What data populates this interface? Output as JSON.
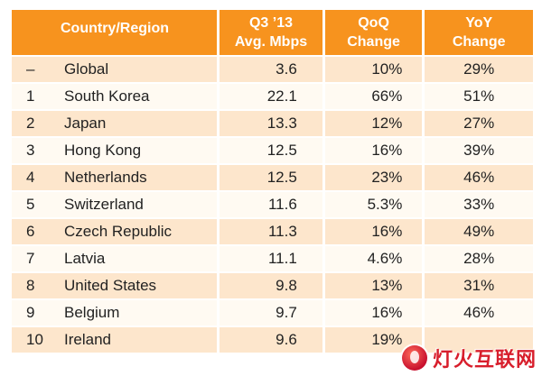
{
  "table": {
    "headers": {
      "country": "Country/Region",
      "speed_line1": "Q3 ’13",
      "speed_line2": "Avg. Mbps",
      "qoq_line1": "QoQ",
      "qoq_line2": "Change",
      "yoy_line1": "YoY",
      "yoy_line2": "Change"
    },
    "rows": [
      {
        "rank": "–",
        "country": "Global",
        "speed": "3.6",
        "qoq": "10%",
        "yoy": "29%"
      },
      {
        "rank": "1",
        "country": "South Korea",
        "speed": "22.1",
        "qoq": "66%",
        "yoy": "51%"
      },
      {
        "rank": "2",
        "country": "Japan",
        "speed": "13.3",
        "qoq": "12%",
        "yoy": "27%"
      },
      {
        "rank": "3",
        "country": "Hong Kong",
        "speed": "12.5",
        "qoq": "16%",
        "yoy": "39%"
      },
      {
        "rank": "4",
        "country": "Netherlands",
        "speed": "12.5",
        "qoq": "23%",
        "yoy": "46%"
      },
      {
        "rank": "5",
        "country": "Switzerland",
        "speed": "11.6",
        "qoq": "5.3%",
        "yoy": "33%"
      },
      {
        "rank": "6",
        "country": "Czech Republic",
        "speed": "11.3",
        "qoq": "16%",
        "yoy": "49%"
      },
      {
        "rank": "7",
        "country": "Latvia",
        "speed": "11.1",
        "qoq": "4.6%",
        "yoy": "28%"
      },
      {
        "rank": "8",
        "country": "United States",
        "speed": "9.8",
        "qoq": "13%",
        "yoy": "31%"
      },
      {
        "rank": "9",
        "country": "Belgium",
        "speed": "9.7",
        "qoq": "16%",
        "yoy": "46%"
      },
      {
        "rank": "10",
        "country": "Ireland",
        "speed": "9.6",
        "qoq": "19%",
        "yoy": ""
      }
    ]
  },
  "watermark": {
    "text": "灯火互联网",
    "icon": "flame-logo-icon"
  },
  "colors": {
    "header": "#f7931e",
    "row_dark": "#fde6cc",
    "row_light": "#fffaf2",
    "watermark": "#d81e2c"
  }
}
